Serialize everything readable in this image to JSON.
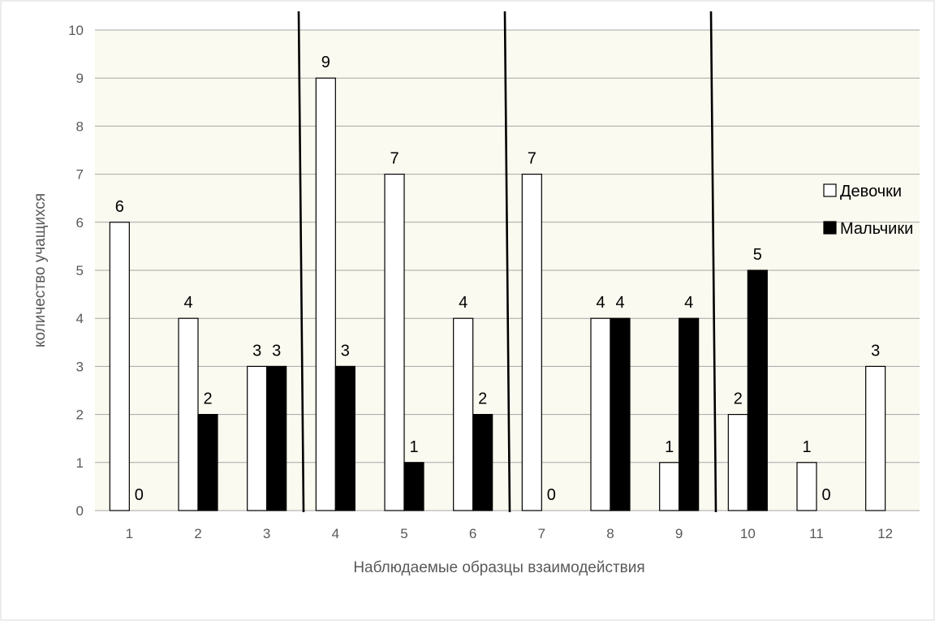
{
  "chart_data": {
    "type": "bar",
    "title": "",
    "xlabel": "Наблюдаемые образцы взаимодействия",
    "ylabel": "количество учащихся",
    "ylim": [
      0,
      10
    ],
    "yticks": [
      0,
      1,
      2,
      3,
      4,
      5,
      6,
      7,
      8,
      9,
      10
    ],
    "grid": true,
    "legend_position": "right",
    "categories": [
      "1",
      "2",
      "3",
      "4",
      "5",
      "6",
      "7",
      "8",
      "9",
      "10",
      "11",
      "12"
    ],
    "series": [
      {
        "name": "Девочки",
        "values": [
          6,
          4,
          3,
          9,
          7,
          4,
          7,
          4,
          1,
          2,
          1,
          3
        ],
        "fill": "#ffffff"
      },
      {
        "name": "Мальчики",
        "values": [
          0,
          2,
          3,
          3,
          1,
          2,
          0,
          4,
          4,
          5,
          0,
          null
        ],
        "fill": "#000000"
      }
    ],
    "data_labels": [
      [
        "6",
        "4",
        "3",
        "9",
        "7",
        "4",
        "7",
        "4",
        "1",
        "2",
        "1",
        "3"
      ],
      [
        "0",
        "2",
        "3",
        "3",
        "1",
        "2",
        "0",
        "4",
        "4",
        "5",
        "0",
        ""
      ]
    ],
    "separator_lines_after_category": [
      3,
      6,
      9
    ],
    "colors": {
      "plot_background": "#fafaf0",
      "grid": "#a6a6a6",
      "axis_text": "#595959"
    }
  }
}
